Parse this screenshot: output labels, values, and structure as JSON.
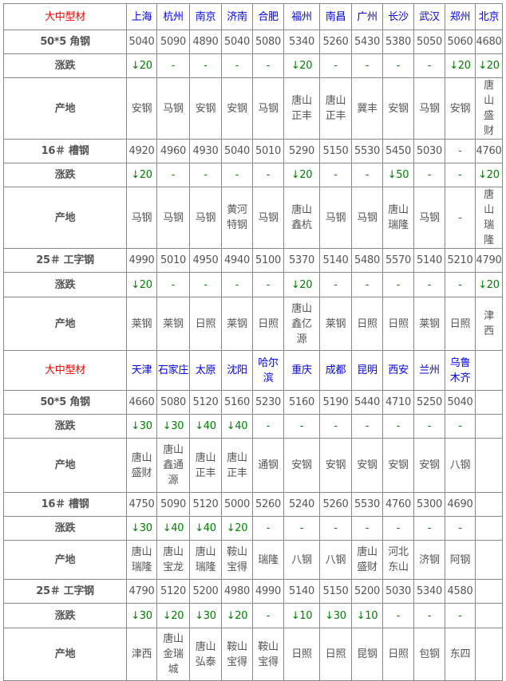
{
  "colors": {
    "title": "#ff0000",
    "city": "#0000ee",
    "change": "#008000",
    "text": "#555555"
  },
  "labels": {
    "title": "大中型材",
    "angle": "50*5 角钢",
    "channel": "16＃ 槽钢",
    "ibeam": "25＃ 工字钢",
    "change": "涨跌",
    "origin": "产地"
  },
  "sections": [
    {
      "cities": [
        "上海",
        "杭州",
        "南京",
        "济南",
        "合肥",
        "福州",
        "南昌",
        "广州",
        "长沙",
        "武汉",
        "郑州",
        "北京"
      ],
      "products": [
        {
          "label_key": "angle",
          "prices": [
            "5040",
            "5090",
            "4890",
            "5040",
            "5080",
            "5340",
            "5260",
            "5430",
            "5380",
            "5050",
            "5060",
            "4680"
          ],
          "changes": [
            "↓20",
            "-",
            "-",
            "-",
            "-",
            "↓20",
            "-",
            "-",
            "-",
            "-",
            "↓20",
            "↓20"
          ],
          "origins": [
            "安钢",
            "马钢",
            "安钢",
            "安钢",
            "马钢",
            "唐山正丰",
            "唐山正丰",
            "冀丰",
            "安钢",
            "马钢",
            "安钢",
            "唐山盛财"
          ]
        },
        {
          "label_key": "channel",
          "prices": [
            "4920",
            "4960",
            "4930",
            "5040",
            "5010",
            "5290",
            "5150",
            "5530",
            "5450",
            "5030",
            "-",
            "4760"
          ],
          "changes": [
            "↓20",
            "-",
            "-",
            "-",
            "-",
            "↓20",
            "-",
            "-",
            "↓50",
            "-",
            "-",
            "↓20"
          ],
          "origins": [
            "马钢",
            "马钢",
            "马钢",
            "黄河特钢",
            "马钢",
            "唐山鑫杭",
            "马钢",
            "马钢",
            "唐山瑞隆",
            "马钢",
            "-",
            "唐山瑞隆"
          ]
        },
        {
          "label_key": "ibeam",
          "prices": [
            "4990",
            "5010",
            "4950",
            "4940",
            "5100",
            "5370",
            "5140",
            "5480",
            "5570",
            "5140",
            "5210",
            "4790"
          ],
          "changes": [
            "↓20",
            "-",
            "-",
            "-",
            "-",
            "↓20",
            "-",
            "-",
            "-",
            "-",
            "-",
            "↓20"
          ],
          "origins": [
            "莱钢",
            "莱钢",
            "日照",
            "莱钢",
            "日照",
            "唐山鑫亿源",
            "莱钢",
            "日照",
            "日照",
            "莱钢",
            "日照",
            "津西"
          ]
        }
      ]
    },
    {
      "cities": [
        "天津",
        "石家庄",
        "太原",
        "沈阳",
        "哈尔滨",
        "重庆",
        "成都",
        "昆明",
        "西安",
        "兰州",
        "乌鲁木齐",
        ""
      ],
      "products": [
        {
          "label_key": "angle",
          "prices": [
            "4660",
            "5080",
            "5120",
            "5160",
            "5230",
            "5160",
            "5190",
            "5440",
            "4710",
            "5250",
            "5040",
            ""
          ],
          "changes": [
            "↓30",
            "↓30",
            "↓40",
            "↓40",
            "-",
            "-",
            "-",
            "-",
            "-",
            "-",
            "-",
            ""
          ],
          "origins": [
            "唐山盛财",
            "唐山鑫通源",
            "唐山正丰",
            "唐山正丰",
            "通钢",
            "安钢",
            "安钢",
            "安钢",
            "安钢",
            "安钢",
            "八钢",
            ""
          ]
        },
        {
          "label_key": "channel",
          "prices": [
            "4750",
            "5090",
            "5120",
            "5000",
            "5260",
            "5240",
            "5260",
            "5530",
            "4760",
            "5300",
            "4690",
            ""
          ],
          "changes": [
            "↓30",
            "↓40",
            "↓40",
            "↓20",
            "-",
            "-",
            "-",
            "-",
            "-",
            "-",
            "-",
            ""
          ],
          "origins": [
            "唐山瑞隆",
            "唐山宝龙",
            "唐山瑞隆",
            "鞍山宝得",
            "瑞隆",
            "八钢",
            "八钢",
            "唐山盛财",
            "河北东山",
            "济钢",
            "阿钢",
            ""
          ]
        },
        {
          "label_key": "ibeam",
          "prices": [
            "4790",
            "5120",
            "5200",
            "4980",
            "4990",
            "5140",
            "5150",
            "5200",
            "5030",
            "5340",
            "4580",
            ""
          ],
          "changes": [
            "↓30",
            "↓20",
            "↓30",
            "↓20",
            "-",
            "↓10",
            "↓30",
            "↓10",
            "-",
            "-",
            "-",
            ""
          ],
          "origins": [
            "津西",
            "唐山金瑞城",
            "唐山弘泰",
            "鞍山宝得",
            "鞍山宝得",
            "日照",
            "日照",
            "昆钢",
            "日照",
            "包钢",
            "东四",
            ""
          ]
        }
      ]
    }
  ]
}
